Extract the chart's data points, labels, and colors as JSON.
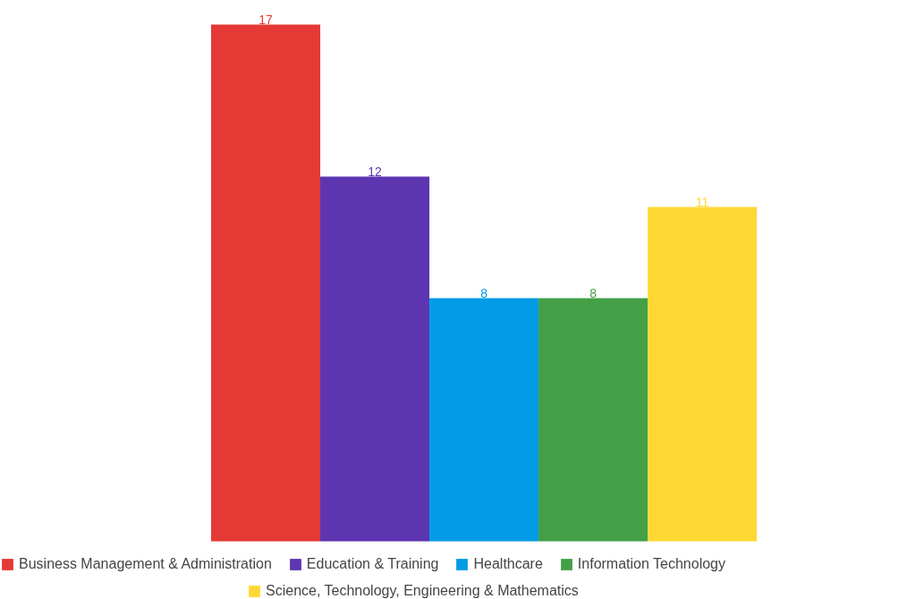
{
  "chart_data": {
    "type": "bar",
    "categories": [
      null
    ],
    "data_labels": true,
    "legend": "bottom",
    "series": [
      {
        "name": "Business Management & Administration",
        "color": "#e53935",
        "values": [
          17
        ]
      },
      {
        "name": "Education & Training",
        "color": "#5e35b1",
        "values": [
          12
        ]
      },
      {
        "name": "Healthcare",
        "color": "#039be5",
        "values": [
          8
        ]
      },
      {
        "name": "Information Technology",
        "color": "#43a047",
        "values": [
          8
        ]
      },
      {
        "name": "Science, Technology, Engineering & Mathematics",
        "color": "#fdd835",
        "values": [
          11
        ]
      }
    ]
  }
}
